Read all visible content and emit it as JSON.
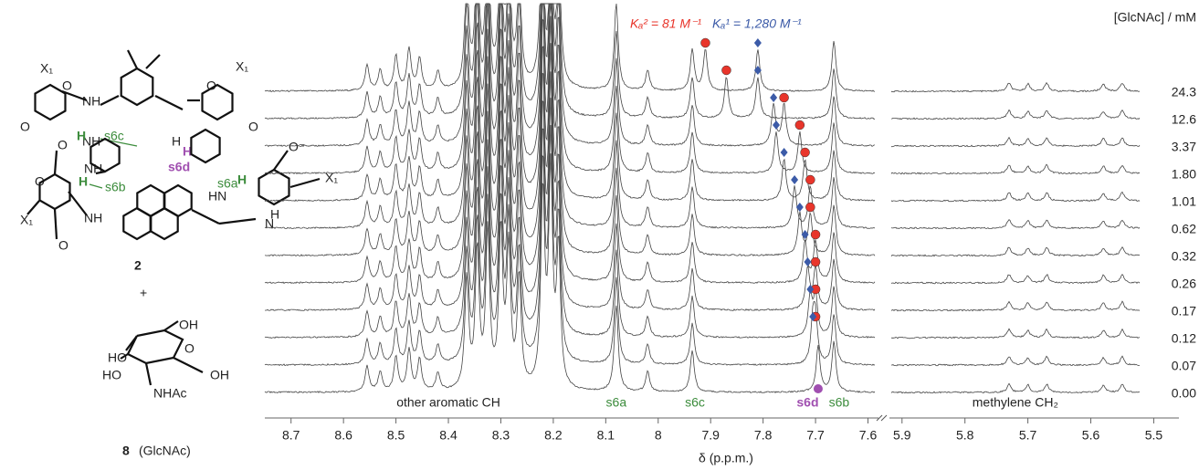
{
  "chart_data": {
    "type": "nmr_stack",
    "x_label": "δ (p.p.m.)",
    "legend_title": "[GlcNAc] / mM",
    "xlim": [
      8.75,
      7.58
    ],
    "xticks": [
      8.7,
      8.6,
      8.5,
      8.4,
      8.3,
      8.2,
      8.1,
      8.0,
      7.9,
      7.8,
      7.7,
      7.6
    ],
    "x2lim": [
      5.92,
      5.46
    ],
    "x2ticks": [
      5.9,
      5.8,
      5.7,
      5.6,
      5.5
    ],
    "categories": [
      "24.3",
      "12.6",
      "3.37",
      "1.80",
      "1.01",
      "0.62",
      "0.32",
      "0.26",
      "0.17",
      "0.12",
      "0.07",
      "0.00"
    ],
    "series": [
      {
        "name": "Kₐ² = 81 M⁻¹",
        "color": "#e8352b",
        "values": [
          7.91,
          7.87,
          7.76,
          7.73,
          7.72,
          7.71,
          7.71,
          7.7,
          7.7,
          7.7,
          7.7,
          null
        ]
      },
      {
        "name": "Kₐ¹ = 1,280 M⁻¹",
        "color": "#3c5ba8",
        "values": [
          7.81,
          7.81,
          7.78,
          7.775,
          7.76,
          7.74,
          7.73,
          7.72,
          7.715,
          7.71,
          7.705,
          null
        ]
      }
    ],
    "reference_marker": {
      "color": "#a04fb0",
      "value": 7.695
    },
    "peaks": [
      {
        "ppm": 8.555,
        "height": 28
      },
      {
        "ppm": 8.53,
        "height": 22
      },
      {
        "ppm": 8.5,
        "height": 38
      },
      {
        "ppm": 8.475,
        "height": 45
      },
      {
        "ppm": 8.455,
        "height": 35
      },
      {
        "ppm": 8.42,
        "height": 20
      },
      {
        "ppm": 8.365,
        "height": 120
      },
      {
        "ppm": 8.345,
        "height": 150
      },
      {
        "ppm": 8.325,
        "height": 170
      },
      {
        "ppm": 8.3,
        "height": 170
      },
      {
        "ppm": 8.285,
        "height": 150
      },
      {
        "ppm": 8.265,
        "height": 120
      },
      {
        "ppm": 8.22,
        "height": 210
      },
      {
        "ppm": 8.205,
        "height": 230
      },
      {
        "ppm": 8.19,
        "height": 150
      },
      {
        "ppm": 8.08,
        "height": 95
      },
      {
        "ppm": 8.02,
        "height": 22
      },
      {
        "ppm": 7.935,
        "height": 45
      },
      {
        "ppm": 7.665,
        "height": 55
      },
      {
        "ppm": 5.73,
        "height": 9
      },
      {
        "ppm": 5.7,
        "height": 8
      },
      {
        "ppm": 5.67,
        "height": 9
      },
      {
        "ppm": 5.58,
        "height": 8
      },
      {
        "ppm": 5.55,
        "height": 9
      },
      {
        "ppm": 5.51,
        "height": 8
      }
    ],
    "peak_labels": [
      {
        "text": "other aromatic CH",
        "ppm": 8.4,
        "color": "#222222"
      },
      {
        "text": "s6a",
        "ppm": 8.08,
        "color": "#3c8c3c"
      },
      {
        "text": "s6c",
        "ppm": 7.93,
        "color": "#3c8c3c"
      },
      {
        "text": "s6d",
        "ppm": 7.715,
        "color": "#a04fb0"
      },
      {
        "text": "s6b",
        "ppm": 7.655,
        "color": "#3c8c3c"
      },
      {
        "text": "methylene CH₂",
        "ppm": 5.72,
        "color": "#222222"
      }
    ]
  },
  "structure": {
    "labels": [
      "X₁",
      "X₁",
      "X₁",
      "X₁",
      "NH",
      "NH",
      "NH",
      "NH",
      "HN",
      "H",
      "H",
      "H",
      "H",
      "H",
      "H",
      "O",
      "O",
      "O",
      "O",
      "O",
      "O",
      "O",
      "O⁻",
      "s6c",
      "s6d",
      "s6b",
      "s6a",
      "2",
      "+",
      "8",
      "(GlcNAc)",
      "OH",
      "HO",
      "HO",
      "O",
      "OH",
      "NHAc",
      "N"
    ]
  }
}
